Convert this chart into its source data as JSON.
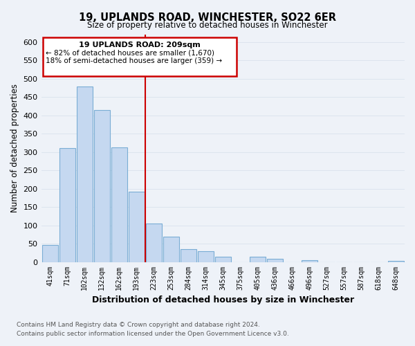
{
  "title": "19, UPLANDS ROAD, WINCHESTER, SO22 6ER",
  "subtitle": "Size of property relative to detached houses in Winchester",
  "xlabel": "Distribution of detached houses by size in Winchester",
  "ylabel": "Number of detached properties",
  "bar_color": "#c5d8f0",
  "bar_edge_color": "#7aadd4",
  "bin_labels": [
    "41sqm",
    "71sqm",
    "102sqm",
    "132sqm",
    "162sqm",
    "193sqm",
    "223sqm",
    "253sqm",
    "284sqm",
    "314sqm",
    "345sqm",
    "375sqm",
    "405sqm",
    "436sqm",
    "466sqm",
    "496sqm",
    "527sqm",
    "557sqm",
    "587sqm",
    "618sqm",
    "648sqm"
  ],
  "bar_heights": [
    47,
    311,
    479,
    414,
    313,
    192,
    104,
    69,
    35,
    30,
    14,
    0,
    14,
    9,
    0,
    4,
    0,
    0,
    0,
    0,
    2
  ],
  "ylim": [
    0,
    620
  ],
  "yticks": [
    0,
    50,
    100,
    150,
    200,
    250,
    300,
    350,
    400,
    450,
    500,
    550,
    600
  ],
  "vline_color": "#cc0000",
  "annotation_title": "19 UPLANDS ROAD: 209sqm",
  "annotation_line1": "← 82% of detached houses are smaller (1,670)",
  "annotation_line2": "18% of semi-detached houses are larger (359) →",
  "annotation_box_color": "#cc0000",
  "grid_color": "#dce4ee",
  "footer1": "Contains HM Land Registry data © Crown copyright and database right 2024.",
  "footer2": "Contains public sector information licensed under the Open Government Licence v3.0.",
  "bg_color": "#eef2f8"
}
